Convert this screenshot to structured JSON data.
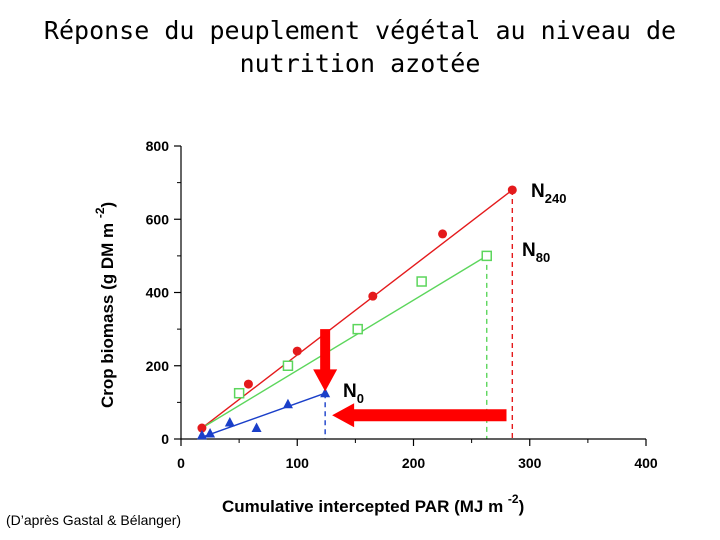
{
  "slide": {
    "title_line1": "Réponse du peuplement végétal au niveau de",
    "title_line2": "nutrition azotée",
    "credit": "(D’après Gastal & Bélanger)"
  },
  "chart_data": {
    "type": "scatter",
    "xlabel": "Cumulative intercepted PAR (MJ m",
    "xlabel_sup": "-2",
    "xlabel_close": ")",
    "ylabel": "Crop biomass (g DM m",
    "ylabel_sup": "-2",
    "ylabel_close": ")",
    "xlim": [
      0,
      400
    ],
    "ylim": [
      0,
      800
    ],
    "xticks": [
      0,
      100,
      200,
      300,
      400
    ],
    "yticks": [
      0,
      200,
      400,
      600,
      800
    ],
    "series": [
      {
        "name": "N240",
        "label_main": "N",
        "label_sub": "240",
        "marker": "filled-circle",
        "color": "#e41a1c",
        "x": [
          18,
          58,
          100,
          165,
          225,
          285
        ],
        "y": [
          30,
          150,
          240,
          390,
          560,
          680
        ],
        "fit": [
          [
            18,
            30
          ],
          [
            285,
            680
          ]
        ]
      },
      {
        "name": "N80",
        "label_main": "N",
        "label_sub": "80",
        "marker": "open-square",
        "color": "#5cd65c",
        "x": [
          50,
          92,
          152,
          207,
          263
        ],
        "y": [
          125,
          200,
          300,
          430,
          500
        ],
        "fit": [
          [
            18,
            30
          ],
          [
            263,
            500
          ]
        ]
      },
      {
        "name": "N0",
        "label_main": "N",
        "label_sub": "0",
        "marker": "filled-triangle",
        "color": "#1a3fc9",
        "x": [
          18,
          25,
          42,
          65,
          92,
          124
        ],
        "y": [
          10,
          15,
          45,
          30,
          95,
          125
        ],
        "fit": [
          [
            18,
            5
          ],
          [
            124,
            125
          ]
        ]
      }
    ],
    "drop_lines": [
      {
        "series": "N240",
        "x": 285,
        "y": 680
      },
      {
        "series": "N80",
        "x": 263,
        "y": 500
      },
      {
        "series": "N0",
        "x": 124,
        "y": 125
      }
    ],
    "annotations": [
      {
        "type": "arrow",
        "direction": "down",
        "color": "#ff0000",
        "from": [
          124,
          300
        ],
        "to": [
          124,
          130
        ]
      },
      {
        "type": "arrow",
        "direction": "left",
        "color": "#ff0000",
        "from": [
          280,
          65
        ],
        "to": [
          130,
          65
        ]
      }
    ]
  }
}
